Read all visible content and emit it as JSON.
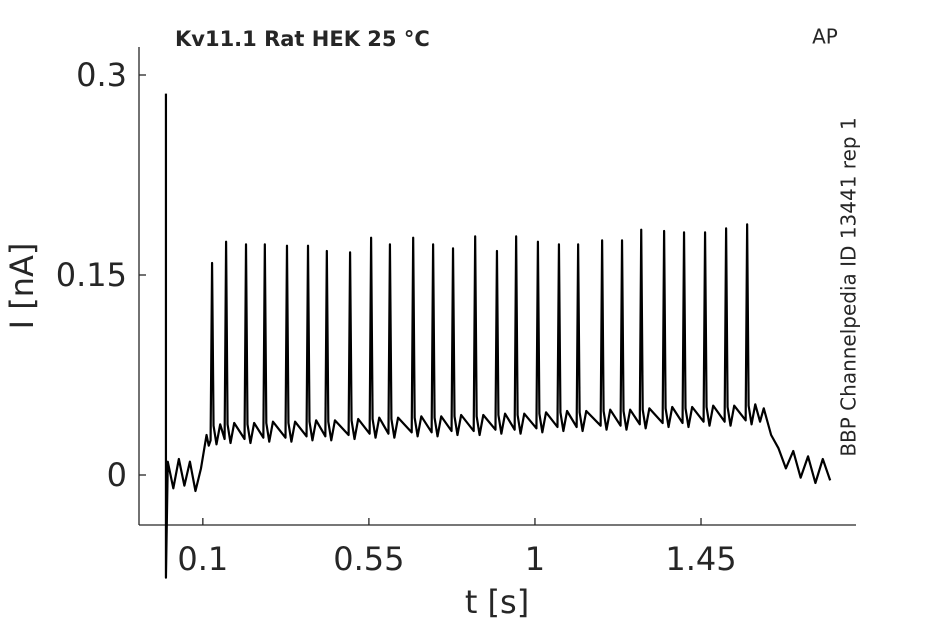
{
  "chart_data": {
    "type": "line",
    "title": "Kv11.1  Rat  HEK  25 °C",
    "annotations": [
      "AP",
      "BBP Channelpedia ID 13441 rep 1"
    ],
    "xlabel": "t [s]",
    "ylabel": "I [nA]",
    "xlim": [
      -0.073,
      1.87
    ],
    "ylim": [
      -0.0375,
      0.321
    ],
    "xticks": [
      0.1,
      0.55,
      1,
      1.45
    ],
    "yticks": [
      0,
      0.15,
      0.3
    ],
    "color": "#000000",
    "x": [
      0,
      0,
      0.005,
      0.02,
      0.035,
      0.05,
      0.065,
      0.08,
      0.095,
      0.11,
      0.116,
      0.121,
      0.125,
      0.129,
      0.137,
      0.147,
      0.159,
      0.163,
      0.167,
      0.175,
      0.185,
      0.213,
      0.217,
      0.221,
      0.229,
      0.239,
      0.264,
      0.268,
      0.272,
      0.28,
      0.29,
      0.324,
      0.328,
      0.332,
      0.34,
      0.35,
      0.381,
      0.385,
      0.389,
      0.397,
      0.407,
      0.432,
      0.436,
      0.44,
      0.448,
      0.458,
      0.495,
      0.499,
      0.503,
      0.511,
      0.521,
      0.552,
      0.556,
      0.56,
      0.568,
      0.578,
      0.603,
      0.607,
      0.611,
      0.619,
      0.629,
      0.666,
      0.67,
      0.674,
      0.682,
      0.692,
      0.72,
      0.724,
      0.728,
      0.736,
      0.746,
      0.774,
      0.778,
      0.782,
      0.79,
      0.8,
      0.834,
      0.838,
      0.842,
      0.85,
      0.86,
      0.893,
      0.897,
      0.901,
      0.909,
      0.919,
      0.945,
      0.949,
      0.953,
      0.961,
      0.971,
      1.004,
      1.008,
      1.012,
      1.02,
      1.03,
      1.061,
      1.065,
      1.069,
      1.077,
      1.087,
      1.113,
      1.117,
      1.121,
      1.129,
      1.139,
      1.178,
      1.182,
      1.186,
      1.194,
      1.204,
      1.232,
      1.236,
      1.24,
      1.248,
      1.258,
      1.284,
      1.288,
      1.292,
      1.3,
      1.31,
      1.346,
      1.35,
      1.354,
      1.362,
      1.372,
      1.4,
      1.404,
      1.408,
      1.416,
      1.426,
      1.457,
      1.461,
      1.465,
      1.473,
      1.483,
      1.514,
      1.518,
      1.522,
      1.53,
      1.54,
      1.571,
      1.575,
      1.579,
      1.587,
      1.597,
      1.61,
      1.62,
      1.64,
      1.66,
      1.68,
      1.7,
      1.72,
      1.74,
      1.76,
      1.78,
      1.8
    ],
    "values": [
      0.286,
      -0.077,
      0.01,
      -0.01,
      0.012,
      -0.008,
      0.01,
      -0.012,
      0.005,
      0.03,
      0.022,
      0.026,
      0.159,
      0.037,
      0.023,
      0.038,
      0.027,
      0.175,
      0.038,
      0.024,
      0.039,
      0.027,
      0.173,
      0.038,
      0.024,
      0.039,
      0.028,
      0.173,
      0.039,
      0.025,
      0.04,
      0.028,
      0.172,
      0.039,
      0.025,
      0.04,
      0.029,
      0.172,
      0.04,
      0.026,
      0.041,
      0.029,
      0.168,
      0.04,
      0.026,
      0.041,
      0.03,
      0.167,
      0.041,
      0.027,
      0.042,
      0.031,
      0.178,
      0.042,
      0.028,
      0.043,
      0.031,
      0.173,
      0.042,
      0.028,
      0.043,
      0.032,
      0.178,
      0.043,
      0.029,
      0.044,
      0.032,
      0.173,
      0.043,
      0.029,
      0.044,
      0.033,
      0.17,
      0.044,
      0.03,
      0.045,
      0.033,
      0.179,
      0.044,
      0.03,
      0.045,
      0.034,
      0.168,
      0.045,
      0.031,
      0.046,
      0.034,
      0.179,
      0.045,
      0.031,
      0.046,
      0.035,
      0.175,
      0.046,
      0.032,
      0.047,
      0.036,
      0.173,
      0.047,
      0.033,
      0.048,
      0.036,
      0.173,
      0.047,
      0.033,
      0.048,
      0.037,
      0.176,
      0.048,
      0.034,
      0.049,
      0.037,
      0.176,
      0.048,
      0.034,
      0.049,
      0.038,
      0.184,
      0.049,
      0.035,
      0.05,
      0.039,
      0.183,
      0.05,
      0.036,
      0.051,
      0.039,
      0.182,
      0.05,
      0.036,
      0.051,
      0.04,
      0.182,
      0.051,
      0.037,
      0.052,
      0.04,
      0.185,
      0.051,
      0.037,
      0.052,
      0.041,
      0.188,
      0.052,
      0.038,
      0.053,
      0.04,
      0.05,
      0.03,
      0.02,
      0.005,
      0.018,
      -0.002,
      0.014,
      -0.006,
      0.012,
      -0.004
    ]
  }
}
